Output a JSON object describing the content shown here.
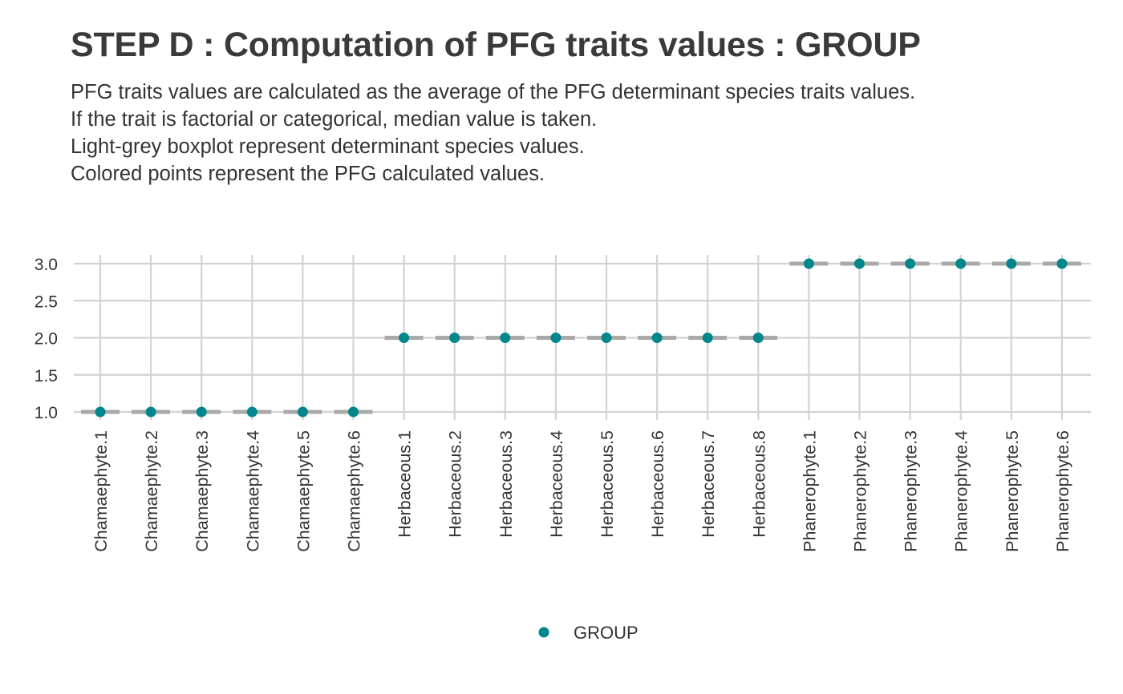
{
  "title": "STEP D : Computation of PFG traits values : GROUP",
  "subtitle_lines": [
    "PFG traits values are calculated as the average of the PFG determinant species traits values.",
    "If the trait is factorial or categorical, median value is taken.",
    "Light-grey boxplot represent determinant species values.",
    "Colored points represent the PFG calculated values."
  ],
  "colors": {
    "point": "#00868b",
    "box": "#a9a9a9",
    "grid": "#d3d3d3",
    "text": "#333333"
  },
  "chart_data": {
    "type": "scatter",
    "categories": [
      "Chamaephyte.1",
      "Chamaephyte.2",
      "Chamaephyte.3",
      "Chamaephyte.4",
      "Chamaephyte.5",
      "Chamaephyte.6",
      "Herbaceous.1",
      "Herbaceous.2",
      "Herbaceous.3",
      "Herbaceous.4",
      "Herbaceous.5",
      "Herbaceous.6",
      "Herbaceous.7",
      "Herbaceous.8",
      "Phanerophyte.1",
      "Phanerophyte.2",
      "Phanerophyte.3",
      "Phanerophyte.4",
      "Phanerophyte.5",
      "Phanerophyte.6"
    ],
    "series": [
      {
        "name": "GROUP",
        "values": [
          1,
          1,
          1,
          1,
          1,
          1,
          2,
          2,
          2,
          2,
          2,
          2,
          2,
          2,
          3,
          3,
          3,
          3,
          3,
          3
        ]
      }
    ],
    "boxplot_values": [
      1,
      1,
      1,
      1,
      1,
      1,
      2,
      2,
      2,
      2,
      2,
      2,
      2,
      2,
      3,
      3,
      3,
      3,
      3,
      3
    ],
    "yticks": [
      "1.0",
      "1.5",
      "2.0",
      "2.5",
      "3.0"
    ],
    "ylim": [
      1,
      3
    ],
    "grid": true,
    "legend_position": "bottom"
  }
}
